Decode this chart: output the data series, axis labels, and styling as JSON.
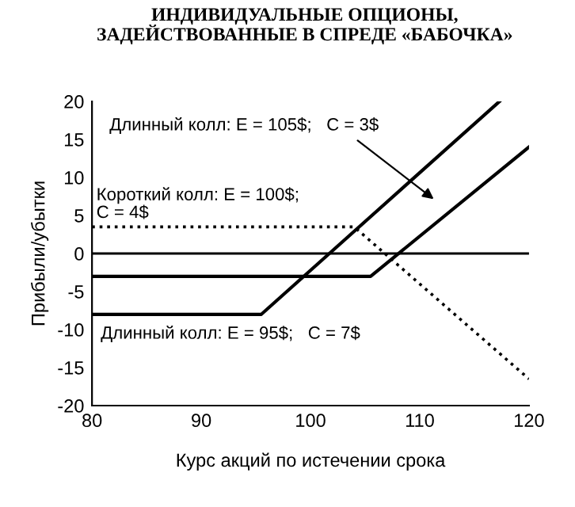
{
  "chart_data": {
    "type": "line",
    "title": "ИНДИВИДУАЛЬНЫЕ ОПЦИОНЫ,\nЗАДЕЙСТВОВАННЫЕ В СПРЕДЕ «БАБОЧКА»",
    "xlabel": "Курс акций по истечении срока",
    "ylabel": "Прибыли/убытки",
    "xlim": [
      80,
      120
    ],
    "ylim": [
      -20,
      20
    ],
    "xticks": [
      80,
      90,
      100,
      110,
      120
    ],
    "yticks": [
      -20,
      -15,
      -10,
      -5,
      0,
      5,
      10,
      15,
      20
    ],
    "grid": false,
    "legend": false,
    "marker": "none",
    "series": [
      {
        "color": "#000000",
        "line_style": "solid",
        "x": [
          80,
          95.5,
          117.3
        ],
        "values": [
          -8,
          -8,
          20
        ]
      },
      {
        "color": "#000000",
        "line_style": "solid",
        "x": [
          80,
          105.5,
          120
        ],
        "values": [
          -3,
          -3,
          14
        ]
      },
      {
        "color": "#000000",
        "line_style": "dotted",
        "x": [
          80,
          104,
          120
        ],
        "values": [
          3.5,
          3.5,
          -16.5
        ]
      }
    ],
    "ref_lines": [
      {
        "axis": "y",
        "value": 0,
        "color": "#000000",
        "line_style": "solid"
      }
    ],
    "annotations": [
      "Длинный колл: E = 105$;   C = 3$",
      "Короткий колл: E = 100$;\nC = 4$",
      "Длинный колл: E = 95$;   C = 7$"
    ]
  }
}
